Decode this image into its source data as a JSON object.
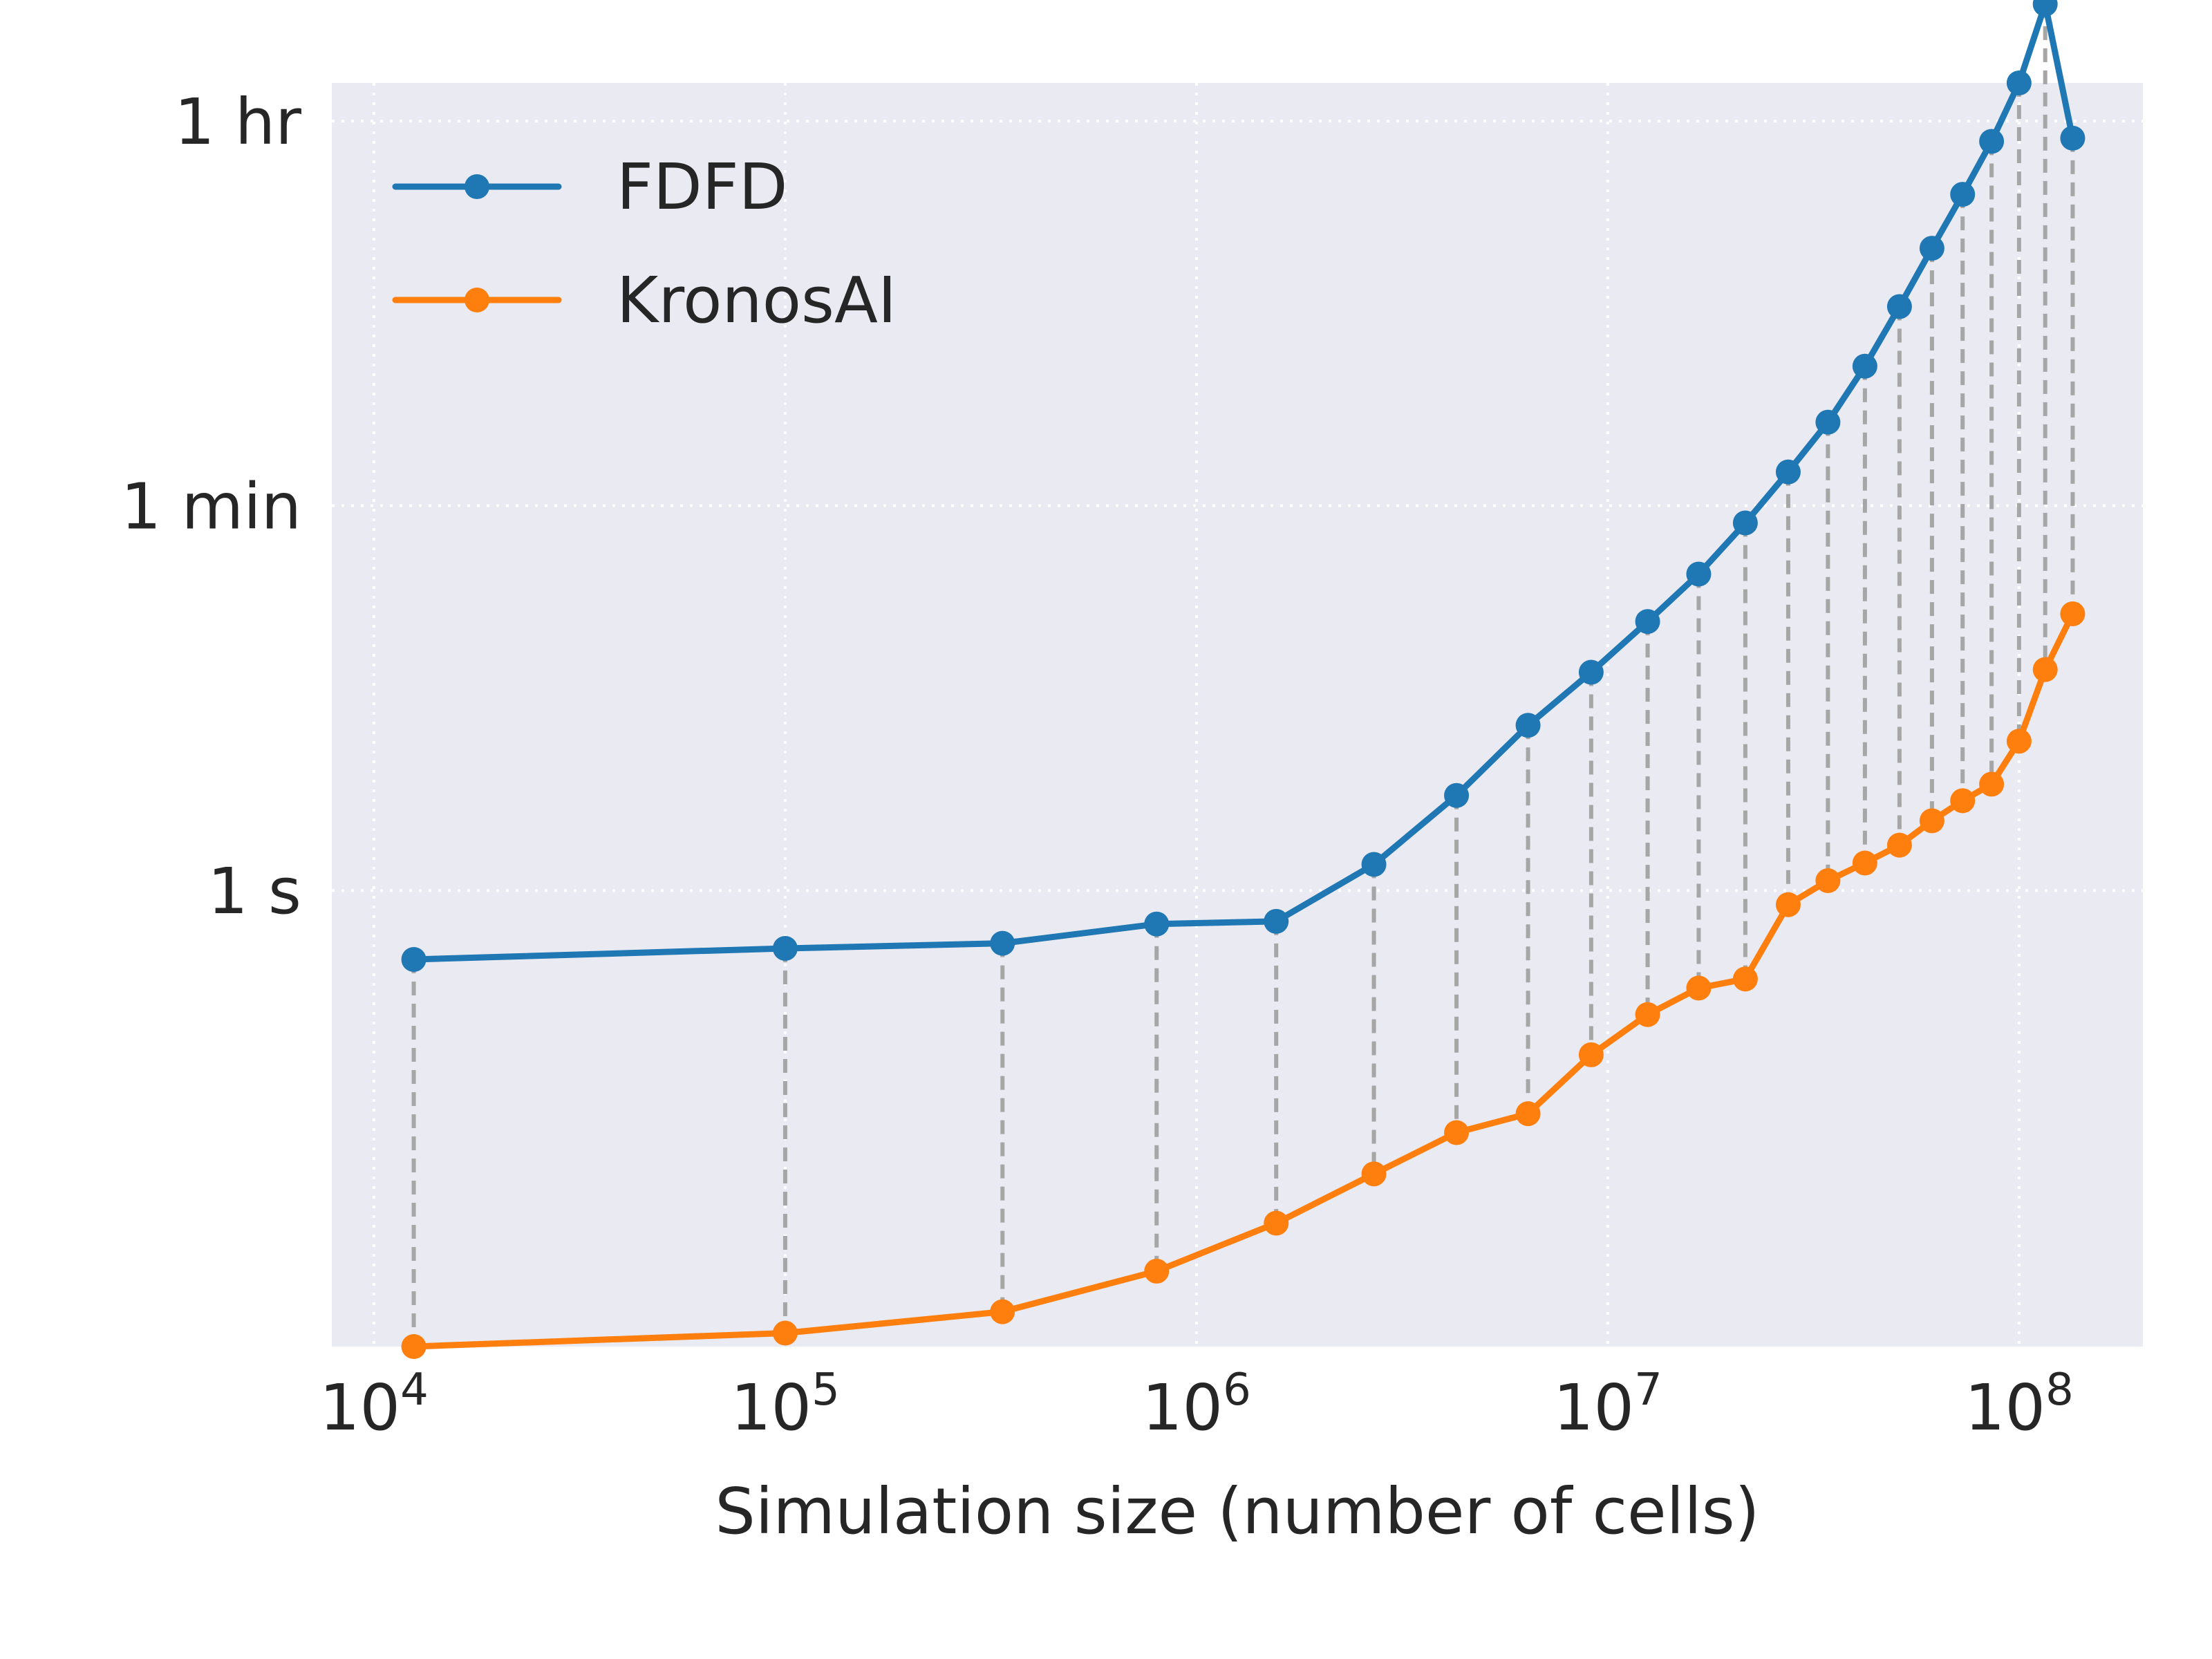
{
  "chart_data": {
    "type": "line",
    "title": "",
    "xlabel": "Simulation size (number of cells)",
    "ylabel": "",
    "x_scale": "log",
    "y_scale": "log",
    "xlim": [
      7900,
      200000000
    ],
    "ylim": [
      0.0078,
      5400
    ],
    "grid": true,
    "legend_position": "top-left",
    "x_ticks": [
      {
        "value": 10000,
        "base": "10",
        "exp": "4"
      },
      {
        "value": 100000,
        "base": "10",
        "exp": "5"
      },
      {
        "value": 1000000,
        "base": "10",
        "exp": "6"
      },
      {
        "value": 10000000,
        "base": "10",
        "exp": "7"
      },
      {
        "value": 100000000,
        "base": "10",
        "exp": "8"
      }
    ],
    "y_ticks": [
      {
        "value": 1,
        "label": "1 s"
      },
      {
        "value": 60,
        "label": "1 min"
      },
      {
        "value": 3600,
        "label": "1 hr"
      }
    ],
    "x": [
      12500,
      100000,
      337500,
      800000,
      1562500,
      2700000,
      4287500,
      6400000,
      9112500,
      12500000,
      16637500,
      21600000,
      27462500,
      34300000,
      42187500,
      51200000,
      61412500,
      72900000,
      85737500,
      100000000,
      115762500,
      135000000
    ],
    "series": [
      {
        "name": "FDFD",
        "color": "#1f77b4",
        "values": [
          0.48,
          0.54,
          0.57,
          0.7,
          0.72,
          1.32,
          2.75,
          5.8,
          10.2,
          17.5,
          29,
          50,
          86,
          146,
          265,
          500,
          930,
          1650,
          2900,
          5400,
          12500,
          3000
        ]
      },
      {
        "name": "KronosAI",
        "color": "#ff7f0e",
        "values": [
          0.0078,
          0.009,
          0.0113,
          0.0174,
          0.029,
          0.049,
          0.076,
          0.093,
          0.174,
          0.267,
          0.354,
          0.39,
          0.86,
          1.11,
          1.34,
          1.62,
          2.1,
          2.6,
          3.1,
          4.9,
          10.5,
          19
        ]
      }
    ]
  }
}
